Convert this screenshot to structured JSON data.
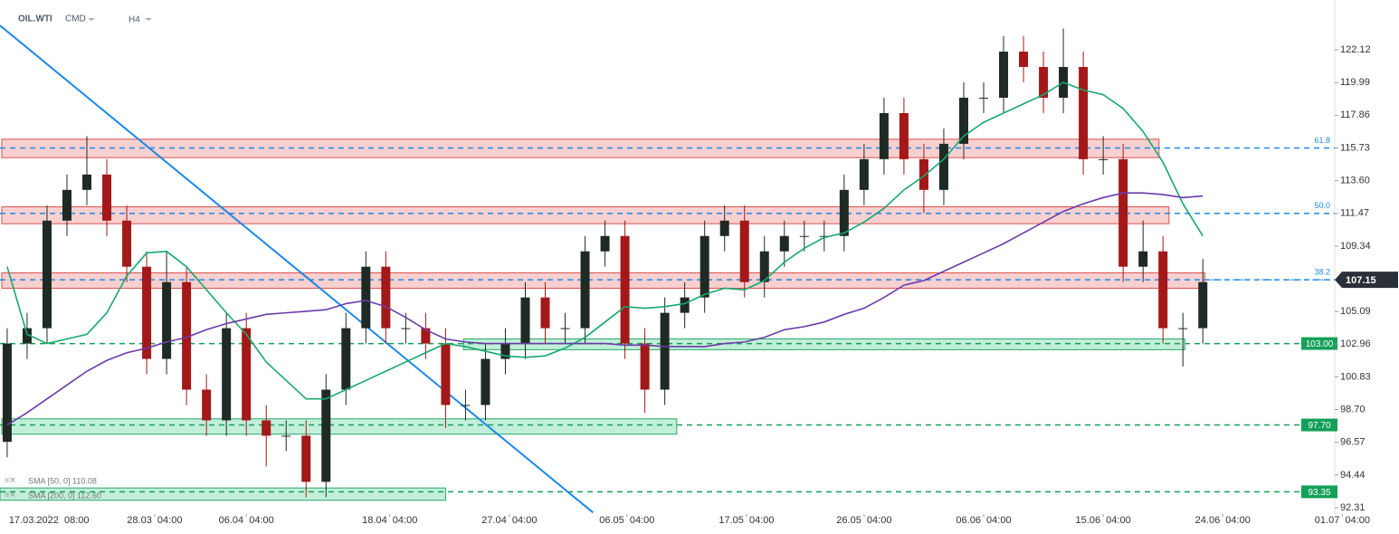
{
  "header": {
    "symbol": "OIL.WTI",
    "market": "CMD",
    "interval": "H4"
  },
  "chart_data": {
    "type": "candlestick",
    "x": [
      0,
      1,
      2,
      3,
      4,
      5,
      6,
      7,
      8,
      9,
      10,
      11,
      12,
      13,
      14,
      15,
      16,
      17,
      18,
      19,
      20,
      21,
      22,
      23,
      24,
      25,
      26,
      27,
      28,
      29,
      30,
      31,
      32,
      33,
      34,
      35,
      36,
      37,
      38,
      39,
      40,
      41,
      42,
      43,
      44,
      45,
      46,
      47,
      48,
      49,
      50,
      51,
      52,
      53,
      54,
      55,
      56,
      57,
      58,
      59,
      60
    ],
    "open": [
      96.6,
      103,
      104,
      111,
      113,
      114,
      111,
      108,
      102,
      107,
      100,
      98,
      104,
      98,
      97,
      97,
      94,
      100,
      104,
      108,
      104,
      104,
      103,
      99,
      99,
      102,
      103,
      106,
      104,
      104,
      109,
      110,
      103,
      100,
      105,
      106,
      110,
      111,
      107,
      109,
      110,
      110,
      110,
      113,
      115,
      118,
      115,
      113,
      116,
      119,
      119,
      122,
      121,
      119,
      121,
      115,
      115,
      108,
      109,
      104,
      104
    ],
    "high": [
      104,
      105,
      112,
      114,
      116.5,
      115,
      112,
      109,
      109,
      108,
      101,
      105,
      105,
      99,
      98,
      98,
      101,
      105,
      109,
      109,
      105,
      105,
      104,
      100,
      103,
      104,
      107,
      107,
      105,
      110,
      111,
      111,
      104,
      106,
      107,
      111,
      112,
      112,
      110,
      111,
      111,
      111,
      114,
      116,
      119,
      119,
      116,
      117,
      120,
      120,
      123,
      123,
      122,
      123.5,
      122,
      116.5,
      116,
      111,
      110,
      105,
      108.5
    ],
    "low": [
      95.6,
      102,
      103,
      110,
      112,
      110,
      107,
      101,
      101,
      99,
      97,
      97,
      97,
      95,
      96,
      93,
      93,
      99,
      103,
      103,
      103,
      102,
      97.5,
      98,
      98,
      101,
      102,
      103,
      103,
      103,
      108,
      102,
      98.5,
      99,
      104,
      105,
      109,
      106,
      106,
      108,
      109,
      109,
      109,
      112,
      114,
      114,
      111.5,
      112,
      115,
      118,
      118,
      120,
      118,
      118,
      114,
      114,
      107,
      107,
      103,
      101.5,
      103
    ],
    "close": [
      103,
      104,
      111,
      113,
      114,
      111,
      108,
      102,
      107,
      100,
      98,
      104,
      98,
      97,
      97,
      94,
      100,
      104,
      108,
      104,
      104,
      103,
      99,
      99,
      102,
      103,
      106,
      104,
      104,
      109,
      110,
      103,
      100,
      105,
      106,
      110,
      111,
      107,
      109,
      110,
      110,
      110,
      113,
      115,
      118,
      115,
      113,
      116,
      119,
      119,
      122,
      121,
      119,
      121,
      115,
      115,
      108,
      109,
      104,
      104,
      107
    ],
    "up_color": "#1f2a24",
    "down_color": "#a31818",
    "series": [
      {
        "name": "SMA [50, 0] 110.08",
        "color": "#16a870",
        "values": [
          108,
          103.6,
          103,
          103.3,
          103.6,
          105,
          107.4,
          108.9,
          109,
          108,
          106.5,
          105,
          103.6,
          101.8,
          100.6,
          99.4,
          99.4,
          100,
          100.6,
          101.2,
          101.8,
          102.4,
          103,
          102.8,
          102.5,
          102.2,
          102.1,
          102.2,
          102.7,
          103.4,
          104.4,
          105.4,
          105.3,
          105.4,
          105.6,
          106.2,
          106.6,
          106.5,
          107.1,
          108.3,
          109.2,
          109.9,
          110.2,
          110.9,
          111.8,
          113,
          113.9,
          115,
          116.5,
          117.4,
          118,
          118.6,
          119.2,
          120,
          119.5,
          119.2,
          118.3,
          116.8,
          114.8,
          112.1,
          110
        ]
      },
      {
        "name": "SMA [200, 0] 112.60",
        "color": "#6a3ca8",
        "values": [
          97.7,
          98.5,
          99.4,
          100.3,
          101.2,
          101.9,
          102.4,
          102.7,
          103.1,
          103.4,
          103.9,
          104.3,
          104.6,
          104.9,
          105,
          105.1,
          105.2,
          105.6,
          105.8,
          105.4,
          104.7,
          103.9,
          103.3,
          103.1,
          103,
          103,
          103,
          103,
          103,
          103,
          103,
          102.9,
          102.9,
          102.8,
          102.8,
          102.8,
          103,
          103.1,
          103.4,
          103.9,
          104.1,
          104.4,
          104.9,
          105.3,
          106,
          106.8,
          107.1,
          107.7,
          108.3,
          108.9,
          109.5,
          110.2,
          110.9,
          111.6,
          112.1,
          112.5,
          112.8,
          112.8,
          112.7,
          112.5,
          112.6
        ]
      }
    ],
    "trendline": {
      "x": [
        -0.36,
        29.4
      ],
      "values": [
        123.7,
        92
      ],
      "color": "#1e88e5"
    },
    "resistance_zones": [
      {
        "from": 115.1,
        "to": 116.3,
        "x": [
          -0.27,
          57.8
        ]
      },
      {
        "from": 110.8,
        "to": 111.9,
        "x": [
          -0.27,
          58.3
        ]
      },
      {
        "from": 106.6,
        "to": 107.6,
        "x": [
          -0.27,
          60.1
        ]
      }
    ],
    "support_zones": [
      {
        "from": 102.6,
        "to": 103.3,
        "x": [
          22.9,
          59.1
        ]
      },
      {
        "from": 97.1,
        "to": 98.1,
        "x": [
          -0.27,
          33.6
        ]
      },
      {
        "from": 92.8,
        "to": 93.6,
        "x": [
          -0.36,
          22
        ]
      }
    ],
    "fib_levels": [
      {
        "value": 115.73,
        "label": "61.8"
      },
      {
        "value": 111.47,
        "label": "50.0"
      },
      {
        "value": 107.15,
        "label": "38.2"
      }
    ],
    "support_levels": [
      {
        "value": 103,
        "label": "103.00"
      },
      {
        "value": 97.7,
        "label": "97.70"
      },
      {
        "value": 93.35,
        "label": "93.35"
      }
    ],
    "last_price": 107.15,
    "xlim": [
      -0.36,
      67.3
    ],
    "ylim": [
      91.9,
      125.36
    ],
    "xticks": [
      {
        "value": 2.1,
        "label": "17.03.2022  08:00"
      },
      {
        "value": 7.4,
        "label": "28.03  04:00"
      },
      {
        "value": 12,
        "label": "06.04  04:00"
      },
      {
        "value": 19.2,
        "label": "18.04  04:00"
      },
      {
        "value": 25.2,
        "label": "27.04  04:00"
      },
      {
        "value": 31.1,
        "label": "06.05  04:00"
      },
      {
        "value": 37.1,
        "label": "17.05  04:00"
      },
      {
        "value": 43,
        "label": "26.05  04:00"
      },
      {
        "value": 49,
        "label": "06.06  04:00"
      },
      {
        "value": 55,
        "label": "15.06  04:00"
      },
      {
        "value": 61,
        "label": "24.06  04:00"
      },
      {
        "value": 67,
        "label": "01.07  04:00"
      }
    ],
    "yticks": [
      122.12,
      119.99,
      117.86,
      115.73,
      {
        "value": 113.6,
        "label": "113.60"
      },
      111.47,
      109.34,
      105.09,
      102.96,
      100.83,
      {
        "value": 98.7,
        "label": "98.70"
      },
      96.57,
      94.44,
      92.31
    ]
  }
}
